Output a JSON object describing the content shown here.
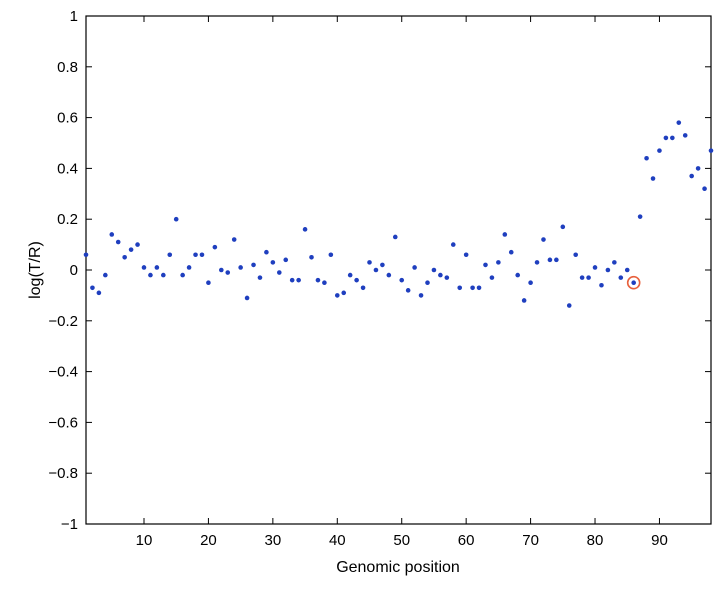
{
  "chart_data": {
    "type": "scatter",
    "title": "",
    "xlabel": "Genomic position",
    "ylabel": "log(T/R)",
    "xlim": [
      1,
      98
    ],
    "ylim": [
      -1,
      1
    ],
    "x_ticks": [
      10,
      20,
      30,
      40,
      50,
      60,
      70,
      80,
      90
    ],
    "y_ticks": [
      -1,
      -0.8,
      -0.6,
      -0.4,
      -0.2,
      0,
      0.2,
      0.4,
      0.6,
      0.8,
      1
    ],
    "y_tick_labels": [
      "−1",
      "−0.8",
      "−0.6",
      "−0.4",
      "−0.2",
      "0",
      "0.2",
      "0.4",
      "0.6",
      "0.8",
      "1"
    ],
    "grid": false,
    "marker_color": "#1f3fbf",
    "highlight_color": "#e8603c",
    "highlight_x": 86,
    "series": [
      {
        "x": [
          1,
          2,
          3,
          4,
          5,
          6,
          7,
          8,
          9,
          10,
          11,
          12,
          13,
          14,
          15,
          16,
          17,
          18,
          19,
          20,
          21,
          22,
          23,
          24,
          25,
          26,
          27,
          28,
          29,
          30,
          31,
          32,
          33,
          34,
          35,
          36,
          37,
          38,
          39,
          40,
          41,
          42,
          43,
          44,
          45,
          46,
          47,
          48,
          49,
          50,
          51,
          52,
          53,
          54,
          55,
          56,
          57,
          58,
          59,
          60,
          61,
          62,
          63,
          64,
          65,
          66,
          67,
          68,
          69,
          70,
          71,
          72,
          73,
          74,
          75,
          76,
          77,
          78,
          79,
          80,
          81,
          82,
          83,
          84,
          85,
          86,
          87,
          88,
          89,
          90,
          91,
          92,
          93,
          94,
          95,
          96,
          97,
          98
        ],
        "y": [
          0.06,
          -0.07,
          -0.09,
          -0.02,
          0.14,
          0.11,
          0.05,
          0.08,
          0.1,
          0.01,
          -0.02,
          0.01,
          -0.02,
          0.06,
          0.2,
          -0.02,
          0.01,
          0.06,
          0.06,
          -0.05,
          0.09,
          0.0,
          -0.01,
          0.12,
          0.01,
          -0.11,
          0.02,
          -0.03,
          0.07,
          0.03,
          -0.01,
          0.04,
          -0.04,
          -0.04,
          0.16,
          0.05,
          -0.04,
          -0.05,
          0.06,
          -0.1,
          -0.09,
          -0.02,
          -0.04,
          -0.07,
          0.03,
          0.0,
          0.02,
          -0.02,
          0.13,
          -0.04,
          -0.08,
          0.01,
          -0.1,
          -0.05,
          0.0,
          -0.02,
          -0.03,
          0.1,
          -0.07,
          0.06,
          -0.07,
          -0.07,
          0.02,
          -0.03,
          0.03,
          0.14,
          0.07,
          -0.02,
          -0.12,
          -0.05,
          0.03,
          0.12,
          0.04,
          0.04,
          0.17,
          -0.14,
          0.06,
          -0.03,
          -0.03,
          0.01,
          -0.06,
          0.0,
          0.03,
          -0.03,
          0.0,
          -0.05,
          0.21,
          0.44,
          0.36,
          0.47,
          0.52,
          0.52,
          0.58,
          0.53,
          0.37,
          0.4,
          0.32,
          0.47
        ]
      }
    ]
  }
}
